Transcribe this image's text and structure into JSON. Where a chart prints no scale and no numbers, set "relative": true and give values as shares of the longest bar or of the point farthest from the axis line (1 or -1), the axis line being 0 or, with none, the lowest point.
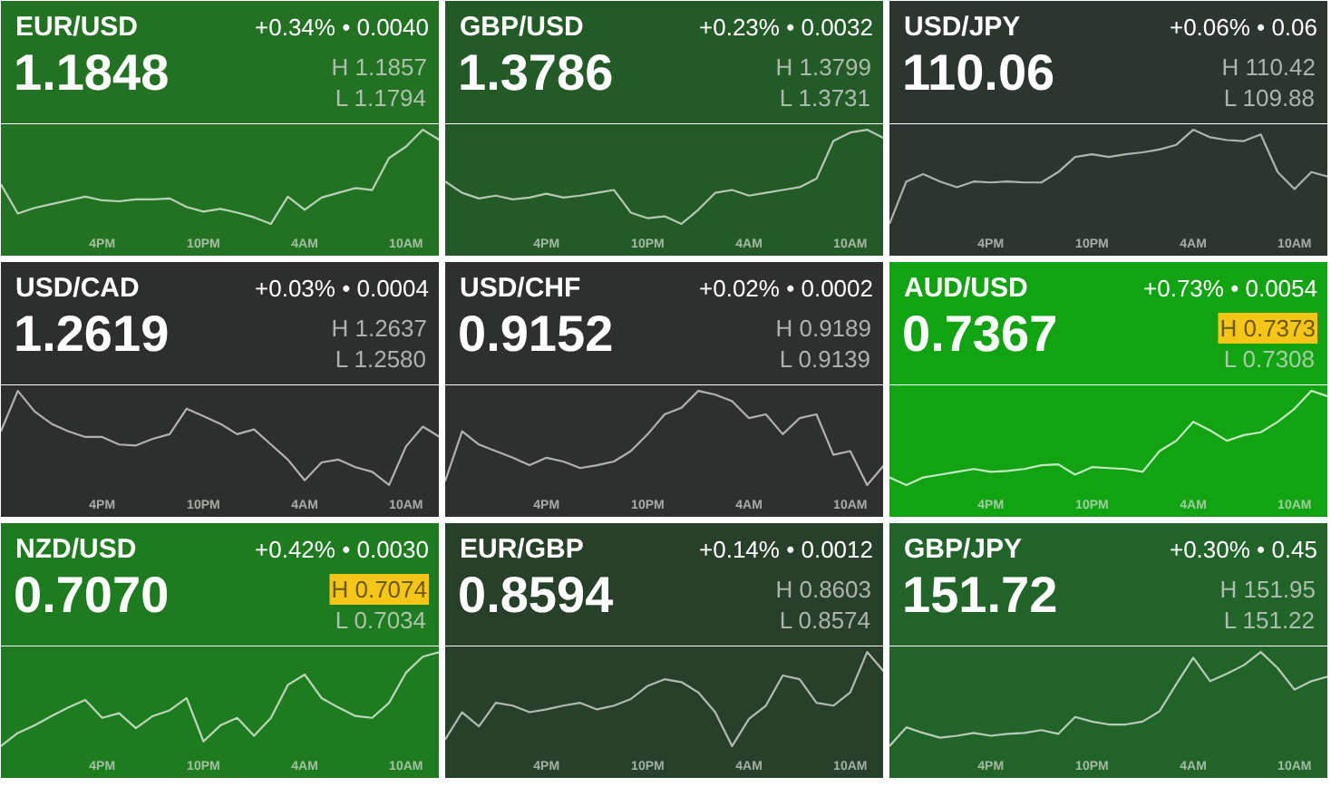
{
  "chart_data": [
    {
      "type": "line",
      "title": "EUR/USD",
      "annotations": [
        "+0.34% • 0.0040",
        "1.1848",
        "H 1.1857",
        "L 1.1794"
      ],
      "relative": true,
      "categories": [
        null,
        null,
        null,
        null,
        null,
        null,
        "4PM",
        null,
        null,
        null,
        null,
        null,
        "10PM",
        null,
        null,
        null,
        null,
        null,
        "4AM",
        null,
        null,
        null,
        null,
        null,
        "10AM",
        null,
        null
      ],
      "series": [
        {
          "color": "#b8d4b8",
          "values": [
            0.42,
            0.11,
            0.17,
            0.21,
            0.25,
            0.29,
            0.25,
            0.24,
            0.26,
            0.26,
            0.27,
            0.18,
            0.13,
            0.16,
            0.12,
            0.07,
            0,
            0.29,
            0.15,
            0.28,
            0.33,
            0.38,
            0.36,
            0.7,
            0.82,
            1,
            0.89
          ]
        }
      ]
    },
    {
      "type": "line",
      "title": "GBP/USD",
      "annotations": [
        "+0.23% • 0.0032",
        "1.3786",
        "H 1.3799",
        "L 1.3731"
      ],
      "relative": true,
      "categories": [
        null,
        null,
        null,
        null,
        null,
        null,
        "4PM",
        null,
        null,
        null,
        null,
        null,
        "10PM",
        null,
        null,
        null,
        null,
        null,
        "4AM",
        null,
        null,
        null,
        null,
        null,
        "10AM",
        null,
        null
      ],
      "series": [
        {
          "color": "#b4c8b4",
          "values": [
            0.45,
            0.33,
            0.27,
            0.3,
            0.26,
            0.28,
            0.32,
            0.28,
            0.3,
            0.33,
            0.36,
            0.12,
            0.06,
            0.08,
            0,
            0.15,
            0.33,
            0.36,
            0.3,
            0.33,
            0.36,
            0.39,
            0.48,
            0.88,
            0.97,
            1,
            0.91
          ]
        }
      ]
    },
    {
      "type": "line",
      "title": "USD/JPY",
      "annotations": [
        "+0.06% • 0.06",
        "110.06",
        "H 110.42",
        "L 109.88"
      ],
      "relative": true,
      "categories": [
        null,
        null,
        null,
        null,
        null,
        null,
        "4PM",
        null,
        null,
        null,
        null,
        null,
        "10PM",
        null,
        null,
        null,
        null,
        null,
        "4AM",
        null,
        null,
        null,
        null,
        null,
        "10AM",
        null,
        null
      ],
      "series": [
        {
          "color": "#b0b4b0",
          "values": [
            0,
            0.45,
            0.53,
            0.45,
            0.39,
            0.45,
            0.44,
            0.45,
            0.44,
            0.44,
            0.55,
            0.71,
            0.74,
            0.71,
            0.74,
            0.76,
            0.79,
            0.84,
            1,
            0.92,
            0.89,
            0.88,
            0.95,
            0.55,
            0.37,
            0.55,
            0.5
          ]
        }
      ]
    },
    {
      "type": "line",
      "title": "USD/CAD",
      "annotations": [
        "+0.03% • 0.0004",
        "1.2619",
        "H 1.2637",
        "L 1.2580"
      ],
      "relative": true,
      "categories": [
        null,
        null,
        null,
        null,
        null,
        null,
        "4PM",
        null,
        null,
        null,
        null,
        null,
        "10PM",
        null,
        null,
        null,
        null,
        null,
        "4AM",
        null,
        null,
        null,
        null,
        null,
        "10AM",
        null,
        null
      ],
      "series": [
        {
          "color": "#b0b2b0",
          "values": [
            0.57,
            1,
            0.78,
            0.65,
            0.57,
            0.51,
            0.51,
            0.43,
            0.42,
            0.49,
            0.54,
            0.81,
            0.73,
            0.65,
            0.54,
            0.59,
            0.43,
            0.27,
            0.05,
            0.24,
            0.27,
            0.19,
            0.14,
            0,
            0.41,
            0.62,
            0.51
          ]
        }
      ]
    },
    {
      "type": "line",
      "title": "USD/CHF",
      "annotations": [
        "+0.02% • 0.0002",
        "0.9152",
        "H 0.9189",
        "L 0.9139"
      ],
      "relative": true,
      "categories": [
        null,
        null,
        null,
        null,
        null,
        null,
        "4PM",
        null,
        null,
        null,
        null,
        null,
        "10PM",
        null,
        null,
        null,
        null,
        null,
        "4AM",
        null,
        null,
        null,
        null,
        null,
        "10AM",
        null,
        null
      ],
      "series": [
        {
          "color": "#b0b2b0",
          "values": [
            0.04,
            0.57,
            0.43,
            0.36,
            0.29,
            0.21,
            0.29,
            0.25,
            0.18,
            0.21,
            0.25,
            0.36,
            0.54,
            0.75,
            0.82,
            1,
            0.96,
            0.89,
            0.71,
            0.75,
            0.54,
            0.71,
            0.75,
            0.32,
            0.36,
            0,
            0.21
          ]
        }
      ]
    },
    {
      "type": "line",
      "title": "AUD/USD",
      "annotations": [
        "+0.73% • 0.0054",
        "0.7367",
        "H 0.7373",
        "L 0.7308"
      ],
      "relative": true,
      "categories": [
        null,
        null,
        null,
        null,
        null,
        null,
        "4PM",
        null,
        null,
        null,
        null,
        null,
        "10PM",
        null,
        null,
        null,
        null,
        null,
        "4AM",
        null,
        null,
        null,
        null,
        null,
        "10AM",
        null,
        null
      ],
      "series": [
        {
          "color": "#c4eac4",
          "values": [
            0.08,
            0,
            0.08,
            0.11,
            0.14,
            0.17,
            0.14,
            0.15,
            0.17,
            0.21,
            0.22,
            0.11,
            0.19,
            0.18,
            0.17,
            0.14,
            0.36,
            0.47,
            0.67,
            0.58,
            0.47,
            0.53,
            0.56,
            0.67,
            0.81,
            1,
            0.94
          ]
        }
      ]
    },
    {
      "type": "line",
      "title": "NZD/USD",
      "annotations": [
        "+0.42% • 0.0030",
        "0.7070",
        "H 0.7074",
        "L 0.7034"
      ],
      "relative": true,
      "categories": [
        null,
        null,
        null,
        null,
        null,
        null,
        "4PM",
        null,
        null,
        null,
        null,
        null,
        "10PM",
        null,
        null,
        null,
        null,
        null,
        "4AM",
        null,
        null,
        null,
        null,
        null,
        "10AM",
        null,
        null
      ],
      "series": [
        {
          "color": "#bcd8bc",
          "values": [
            0,
            0.14,
            0.22,
            0.32,
            0.41,
            0.49,
            0.3,
            0.35,
            0.19,
            0.32,
            0.38,
            0.51,
            0.05,
            0.22,
            0.3,
            0.11,
            0.3,
            0.65,
            0.76,
            0.51,
            0.41,
            0.32,
            0.3,
            0.46,
            0.78,
            0.95,
            1
          ]
        }
      ]
    },
    {
      "type": "line",
      "title": "EUR/GBP",
      "annotations": [
        "+0.14% • 0.0012",
        "0.8594",
        "H 0.8603",
        "L 0.8574"
      ],
      "relative": true,
      "categories": [
        null,
        null,
        null,
        null,
        null,
        null,
        "4PM",
        null,
        null,
        null,
        null,
        null,
        "10PM",
        null,
        null,
        null,
        null,
        null,
        "4AM",
        null,
        null,
        null,
        null,
        null,
        "10AM",
        null,
        null
      ],
      "series": [
        {
          "color": "#b0bcb0",
          "values": [
            0.07,
            0.36,
            0.21,
            0.46,
            0.43,
            0.36,
            0.39,
            0.43,
            0.46,
            0.39,
            0.43,
            0.5,
            0.64,
            0.71,
            0.68,
            0.57,
            0.36,
            0,
            0.29,
            0.43,
            0.75,
            0.71,
            0.46,
            0.43,
            0.57,
            1,
            0.79
          ]
        }
      ]
    },
    {
      "type": "line",
      "title": "GBP/JPY",
      "annotations": [
        "+0.30% • 0.45",
        "151.72",
        "H 151.95",
        "L 151.22"
      ],
      "relative": true,
      "categories": [
        null,
        null,
        null,
        null,
        null,
        null,
        "4PM",
        null,
        null,
        null,
        null,
        null,
        "10PM",
        null,
        null,
        null,
        null,
        null,
        "4AM",
        null,
        null,
        null,
        null,
        null,
        "10AM",
        null,
        null
      ],
      "series": [
        {
          "color": "#b8ccb8",
          "values": [
            0,
            0.2,
            0.14,
            0.09,
            0.11,
            0.14,
            0.11,
            0.13,
            0.14,
            0.17,
            0.13,
            0.31,
            0.26,
            0.23,
            0.23,
            0.26,
            0.37,
            0.66,
            0.94,
            0.69,
            0.77,
            0.86,
            1,
            0.83,
            0.6,
            0.69,
            0.74
          ]
        }
      ]
    }
  ]
}
